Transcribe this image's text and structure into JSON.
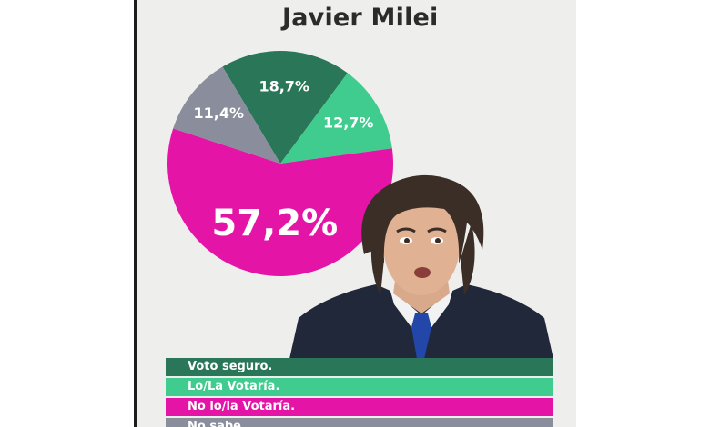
{
  "title": "Javier Milei",
  "colors": {
    "voto_seguro": "#2a7658",
    "lo_votaria": "#3fcc8e",
    "no_votaria": "#e314a6",
    "no_sabe": "#8a8d9b"
  },
  "chart_data": {
    "type": "pie",
    "title": "Javier Milei",
    "slices": [
      {
        "label": "Voto seguro.",
        "value": 18.7,
        "display": "18,7%",
        "color": "#2a7658"
      },
      {
        "label": "Lo/La Votaría.",
        "value": 12.7,
        "display": "12,7%",
        "color": "#3fcc8e"
      },
      {
        "label": "No lo/la Votaría.",
        "value": 57.2,
        "display": "57,2%",
        "color": "#e314a6"
      },
      {
        "label": "No sabe",
        "value": 11.4,
        "display": "11,4%",
        "color": "#8a8d9b"
      }
    ],
    "legend": [
      "Voto seguro.",
      "Lo/La Votaría.",
      "No lo/la Votaría.",
      "No sabe"
    ],
    "legend_placement": "bottom"
  }
}
